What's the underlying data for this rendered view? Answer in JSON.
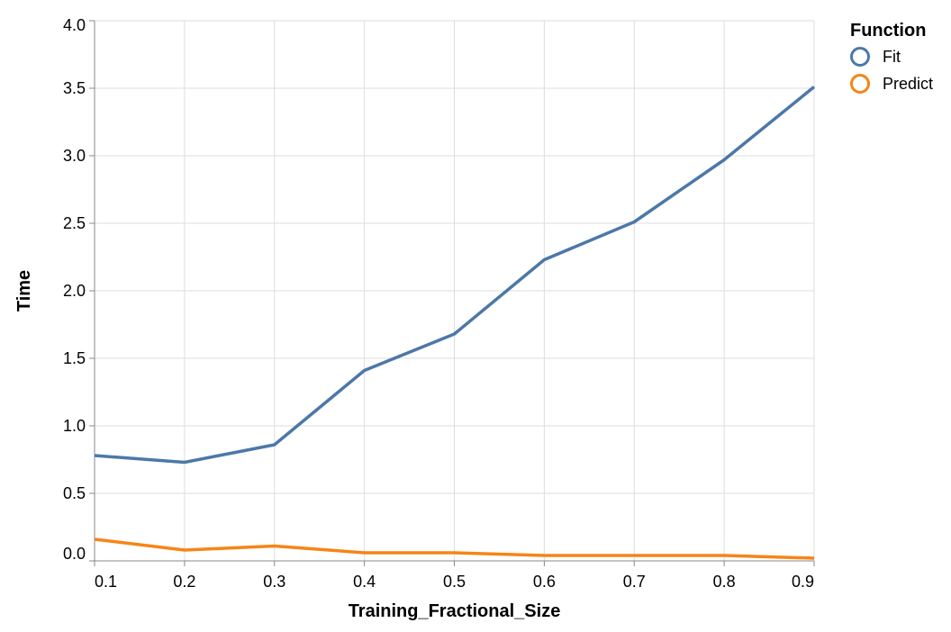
{
  "chart_data": {
    "type": "line",
    "xlabel": "Training_Fractional_Size",
    "ylabel": "Time",
    "xlim": [
      0.1,
      0.9
    ],
    "ylim": [
      0,
      4
    ],
    "x_ticks": [
      "0.1",
      "0.2",
      "0.3",
      "0.4",
      "0.5",
      "0.6",
      "0.7",
      "0.8",
      "0.9"
    ],
    "y_ticks": [
      "0.0",
      "0.5",
      "1.0",
      "1.5",
      "2.0",
      "2.5",
      "3.0",
      "3.5",
      "4.0"
    ],
    "grid": true,
    "legend": {
      "title": "Function",
      "placement": "top-right"
    },
    "x": [
      0.1,
      0.2,
      0.3,
      0.4,
      0.5,
      0.6,
      0.7,
      0.8,
      0.9
    ],
    "series": [
      {
        "name": "Fit",
        "color": "#4c78a8",
        "values": [
          0.78,
          0.73,
          0.86,
          1.41,
          1.68,
          2.23,
          2.51,
          2.97,
          3.51
        ]
      },
      {
        "name": "Predict",
        "color": "#f58518",
        "values": [
          0.16,
          0.08,
          0.11,
          0.06,
          0.06,
          0.04,
          0.04,
          0.04,
          0.02
        ]
      }
    ]
  }
}
